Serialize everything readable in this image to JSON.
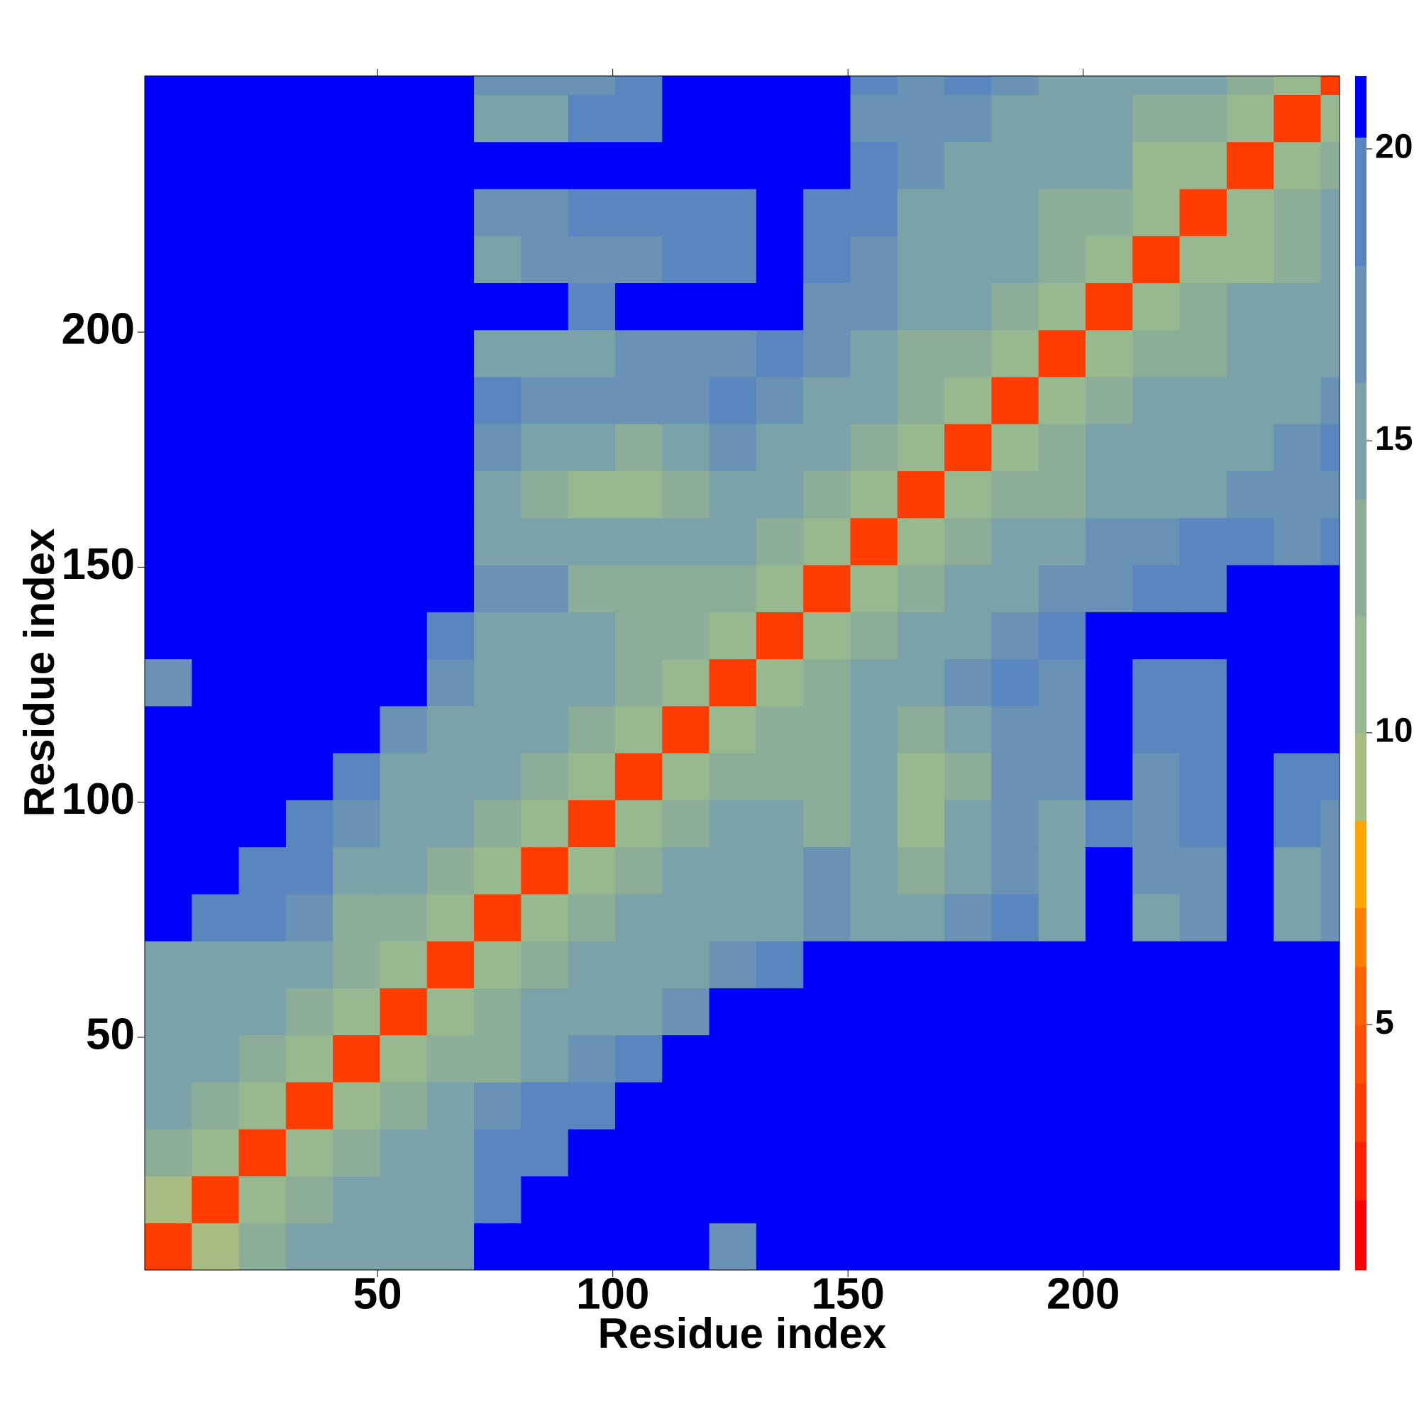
{
  "chart_data": {
    "type": "heatmap",
    "xlabel": "Residue index",
    "ylabel": "Residue index",
    "xbins": [
      0.5,
      10.5,
      20.5,
      30.5,
      40.5,
      50.5,
      60.5,
      70.5,
      80.5,
      90.5,
      100.5,
      110.5,
      120.5,
      130.5,
      140.5,
      150.5,
      160.5,
      170.5,
      180.5,
      190.5,
      200.5,
      210.5,
      220.5,
      230.5,
      240.5,
      250.5,
      254.5
    ],
    "ybins": [
      0.5,
      10.5,
      20.5,
      30.5,
      40.5,
      50.5,
      60.5,
      70.5,
      80.5,
      90.5,
      100.5,
      110.5,
      120.5,
      130.5,
      140.5,
      150.5,
      160.5,
      170.5,
      180.5,
      190.5,
      200.5,
      210.5,
      220.5,
      230.5,
      240.5,
      250.5,
      254.5
    ],
    "xlim": [
      0.5,
      254.5
    ],
    "ylim": [
      0.5,
      254.5
    ],
    "xticks": [
      50,
      100,
      150,
      200
    ],
    "yticks": [
      50,
      100,
      150,
      200
    ],
    "z": [
      [
        3,
        9,
        13,
        14,
        14,
        14,
        15,
        21,
        21,
        21,
        21,
        21,
        17,
        21,
        21,
        21,
        21,
        21,
        21,
        21,
        21,
        21,
        21,
        21,
        21,
        21
      ],
      [
        9,
        3,
        11,
        13,
        14,
        14,
        15,
        18,
        21,
        21,
        21,
        21,
        21,
        21,
        21,
        21,
        21,
        21,
        21,
        21,
        21,
        21,
        21,
        21,
        21,
        21
      ],
      [
        13,
        11,
        3,
        11,
        13,
        14,
        14,
        18,
        18,
        21,
        21,
        21,
        21,
        21,
        21,
        21,
        21,
        21,
        21,
        21,
        21,
        21,
        21,
        21,
        21,
        21
      ],
      [
        14,
        13,
        11,
        3,
        11,
        13,
        14,
        16,
        18,
        18,
        21,
        21,
        21,
        21,
        21,
        21,
        21,
        21,
        21,
        21,
        21,
        21,
        21,
        21,
        21,
        21
      ],
      [
        14,
        14,
        13,
        11,
        3,
        11,
        13,
        13,
        14,
        16,
        18,
        21,
        21,
        21,
        21,
        21,
        21,
        21,
        21,
        21,
        21,
        21,
        21,
        21,
        21,
        21
      ],
      [
        14,
        14,
        14,
        13,
        11,
        3,
        11,
        13,
        14,
        14,
        14,
        16,
        21,
        21,
        21,
        21,
        21,
        21,
        21,
        21,
        21,
        21,
        21,
        21,
        21,
        21
      ],
      [
        15,
        15,
        14,
        14,
        13,
        11,
        3,
        11,
        13,
        14,
        14,
        15,
        17,
        18,
        21,
        21,
        21,
        21,
        21,
        21,
        21,
        21,
        21,
        21,
        21,
        21
      ],
      [
        21,
        18,
        18,
        16,
        13,
        13,
        11,
        3,
        11,
        13,
        14,
        14,
        15,
        15,
        17,
        15,
        15,
        16,
        18,
        15,
        21,
        15,
        17,
        21,
        15,
        16
      ],
      [
        21,
        21,
        18,
        18,
        14,
        14,
        13,
        11,
        3,
        11,
        13,
        14,
        15,
        15,
        16,
        15,
        13,
        15,
        16,
        15,
        21,
        16,
        17,
        21,
        14,
        16
      ],
      [
        21,
        21,
        21,
        18,
        16,
        14,
        14,
        13,
        11,
        3,
        11,
        13,
        14,
        14,
        13,
        14,
        11,
        14,
        16,
        15,
        18,
        17,
        18,
        21,
        18,
        16
      ],
      [
        21,
        21,
        21,
        21,
        18,
        14,
        14,
        14,
        13,
        11,
        3,
        11,
        13,
        12,
        13,
        14,
        11,
        13,
        16,
        16,
        21,
        17,
        18,
        21,
        18,
        19
      ],
      [
        21,
        21,
        21,
        21,
        21,
        16,
        15,
        14,
        14,
        13,
        11,
        3,
        11,
        13,
        13,
        14,
        13,
        14,
        17,
        16,
        21,
        18,
        19,
        21,
        21,
        21
      ],
      [
        17,
        21,
        21,
        21,
        21,
        21,
        17,
        15,
        15,
        14,
        13,
        11,
        3,
        11,
        13,
        14,
        15,
        16,
        18,
        17,
        21,
        18,
        19,
        21,
        21,
        21
      ],
      [
        21,
        21,
        21,
        21,
        21,
        21,
        18,
        15,
        15,
        14,
        12,
        13,
        11,
        3,
        11,
        13,
        14,
        15,
        17,
        18,
        21,
        21,
        21,
        21,
        21,
        21
      ],
      [
        21,
        21,
        21,
        21,
        21,
        21,
        21,
        17,
        16,
        13,
        13,
        13,
        13,
        11,
        3,
        11,
        13,
        14,
        15,
        16,
        17,
        18,
        18,
        21,
        21,
        21
      ],
      [
        21,
        21,
        21,
        21,
        21,
        21,
        21,
        15,
        15,
        14,
        14,
        14,
        14,
        13,
        11,
        3,
        11,
        13,
        14,
        14,
        16,
        17,
        18,
        19,
        17,
        18
      ],
      [
        21,
        21,
        21,
        21,
        21,
        21,
        21,
        15,
        13,
        11,
        11,
        13,
        15,
        14,
        13,
        11,
        3,
        11,
        13,
        13,
        14,
        15,
        15,
        16,
        16,
        17
      ],
      [
        21,
        21,
        21,
        21,
        21,
        21,
        21,
        16,
        15,
        14,
        13,
        14,
        16,
        15,
        14,
        13,
        11,
        3,
        11,
        13,
        14,
        14,
        15,
        15,
        16,
        18
      ],
      [
        21,
        21,
        21,
        21,
        21,
        21,
        21,
        18,
        16,
        16,
        16,
        17,
        18,
        17,
        15,
        14,
        13,
        11,
        3,
        11,
        13,
        14,
        14,
        15,
        15,
        16
      ],
      [
        21,
        21,
        21,
        21,
        21,
        21,
        21,
        15,
        15,
        15,
        16,
        16,
        17,
        18,
        16,
        14,
        13,
        13,
        11,
        3,
        11,
        13,
        13,
        14,
        15,
        15
      ],
      [
        21,
        21,
        21,
        21,
        21,
        21,
        21,
        21,
        21,
        18,
        21,
        21,
        21,
        21,
        17,
        16,
        14,
        14,
        13,
        11,
        3,
        11,
        13,
        14,
        14,
        15
      ],
      [
        21,
        21,
        21,
        21,
        21,
        21,
        21,
        15,
        16,
        17,
        17,
        18,
        18,
        21,
        18,
        17,
        15,
        14,
        14,
        13,
        11,
        3,
        11,
        11,
        13,
        14
      ],
      [
        21,
        21,
        21,
        21,
        21,
        21,
        21,
        17,
        17,
        18,
        18,
        19,
        19,
        21,
        18,
        18,
        15,
        15,
        14,
        13,
        13,
        11,
        3,
        11,
        12,
        14
      ],
      [
        21,
        21,
        21,
        21,
        21,
        21,
        21,
        21,
        21,
        21,
        21,
        21,
        21,
        21,
        21,
        19,
        16,
        15,
        15,
        14,
        14,
        11,
        11,
        3,
        11,
        13
      ],
      [
        21,
        21,
        21,
        21,
        21,
        21,
        21,
        15,
        14,
        18,
        18,
        21,
        21,
        21,
        21,
        17,
        16,
        16,
        15,
        15,
        14,
        13,
        12,
        11,
        3,
        11
      ],
      [
        21,
        21,
        21,
        21,
        21,
        21,
        21,
        16,
        16,
        16,
        19,
        21,
        21,
        21,
        21,
        18,
        17,
        18,
        16,
        15,
        15,
        14,
        14,
        13,
        11,
        3
      ]
    ],
    "levels": [
      0.8,
      2,
      3,
      4,
      5,
      6,
      7,
      8.5,
      10,
      12,
      14,
      16,
      18,
      20.2,
      21.25
    ],
    "colors": [
      "#ff0000",
      "#ff2000",
      "#ff3c00",
      "#ff5000",
      "#ff6400",
      "#ff8000",
      "#ffa500",
      "#a8bc84",
      "#98b890",
      "#8cae98",
      "#7aa2a8",
      "#6a92b4",
      "#5a86c0",
      "#0000ff"
    ],
    "colorbar_lim": [
      0.8,
      21.25
    ],
    "colorbar_ticks": [
      5,
      10,
      15,
      20
    ]
  }
}
